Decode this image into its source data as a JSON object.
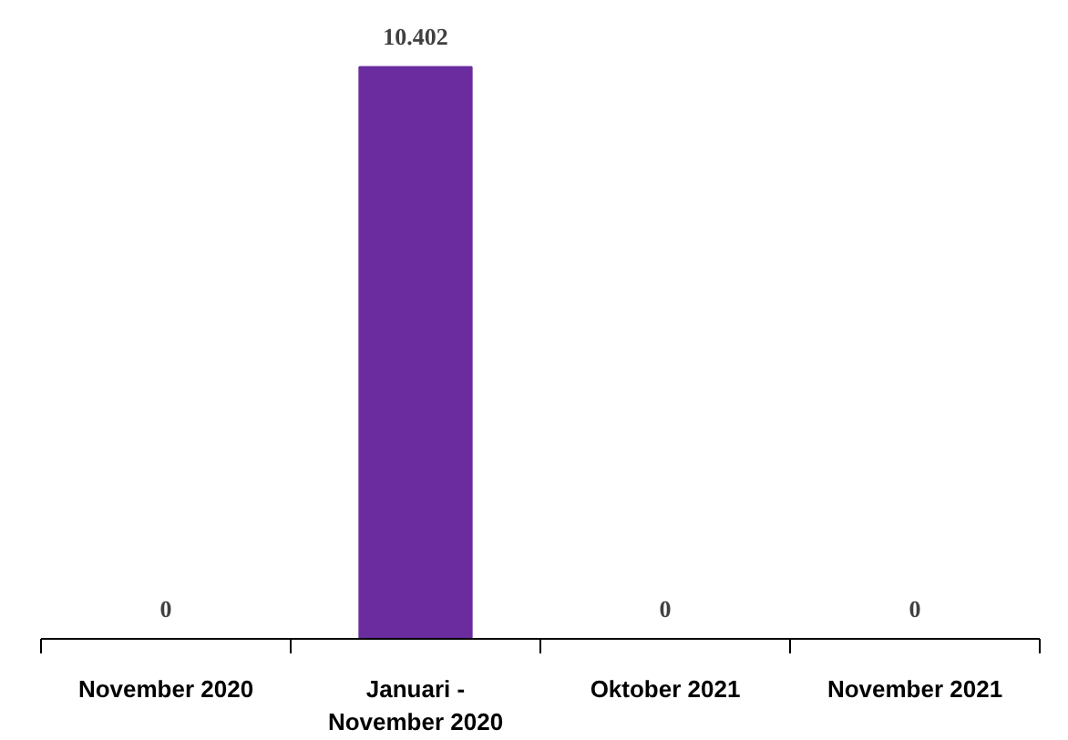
{
  "chart_data": {
    "type": "bar",
    "categories": [
      "November 2020",
      "Januari - November 2020",
      "Oktober 2021",
      "November 2021"
    ],
    "values": [
      0,
      10402,
      0,
      0
    ],
    "color": "#6a2c9e",
    "value_labels": [
      "0",
      "10.402",
      "0",
      "0"
    ]
  }
}
